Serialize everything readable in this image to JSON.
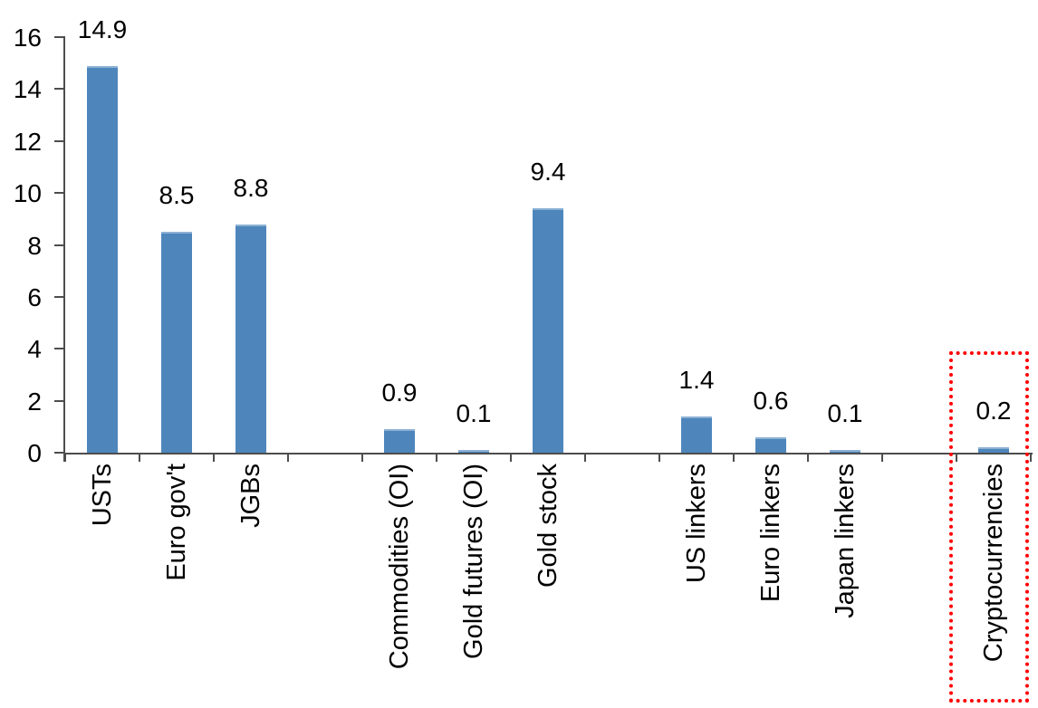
{
  "chart_data": {
    "type": "bar",
    "title": "",
    "xlabel": "",
    "ylabel": "",
    "categories": [
      "USTs",
      "Euro gov't",
      "JGBs",
      "",
      "Commodities (OI)",
      "Gold futures (OI)",
      "Gold stock",
      "",
      "US linkers",
      "Euro linkers",
      "Japan linkers",
      "",
      "Cryptocurrencies"
    ],
    "values": [
      14.9,
      8.5,
      8.8,
      null,
      0.9,
      0.1,
      9.4,
      null,
      1.4,
      0.6,
      0.1,
      null,
      0.2
    ],
    "data_labels": [
      "14.9",
      "8.5",
      "8.8",
      "",
      "0.9",
      "0.1",
      "9.4",
      "",
      "1.4",
      "0.6",
      "0.1",
      "",
      "0.2"
    ],
    "ylim": [
      0,
      16
    ],
    "y_ticks": [
      0,
      2,
      4,
      6,
      8,
      10,
      12,
      14,
      16
    ],
    "grid": "off",
    "legend": "none",
    "bar_color": "#4E86BC",
    "axis_color": "#4d4d4d",
    "text_color": "#000000",
    "highlight": {
      "category": "Cryptocurrencies",
      "style": "red-dotted-box",
      "color": "#FF0000"
    }
  }
}
